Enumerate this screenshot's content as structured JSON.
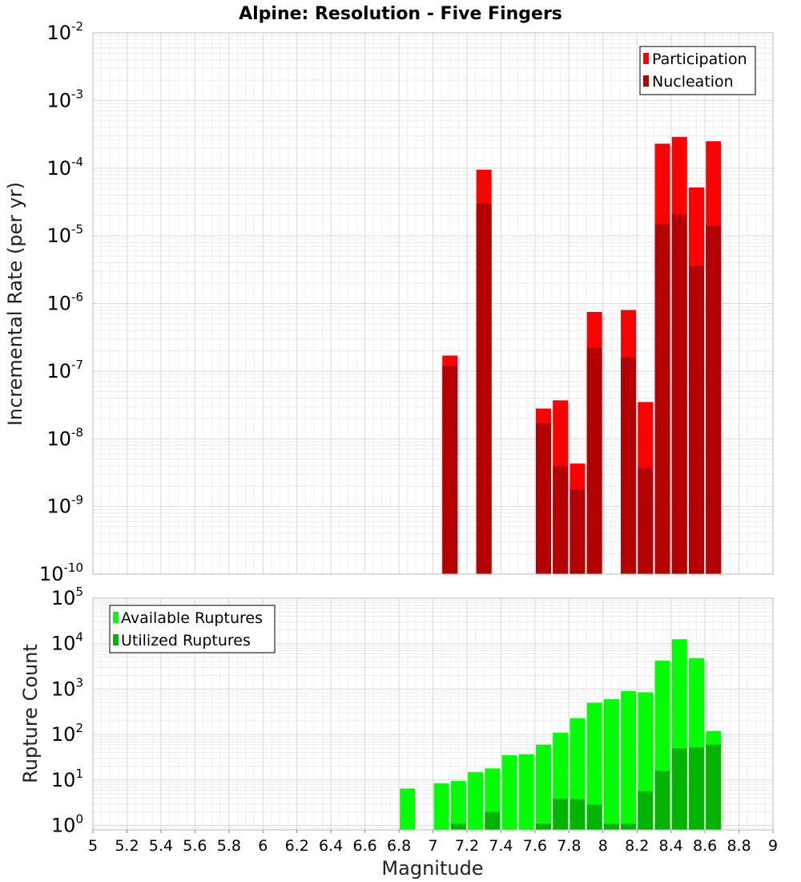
{
  "chart_data": [
    {
      "type": "bar",
      "title": "Alpine: Resolution - Five Fingers",
      "xlabel": "Magnitude",
      "ylabel": "Incremental Rate (per yr)",
      "yscale": "log",
      "ylim": [
        1e-10,
        0.01
      ],
      "xlim": [
        5,
        9
      ],
      "grid": true,
      "legend_position": "top-right",
      "series": [
        {
          "name": "Participation",
          "color": "#ff0000",
          "x": [
            7.1,
            7.3,
            7.65,
            7.75,
            7.85,
            7.95,
            8.15,
            8.25,
            8.35,
            8.45,
            8.55,
            8.65
          ],
          "values": [
            1.7e-07,
            9.5e-05,
            2.8e-08,
            3.7e-08,
            4.3e-09,
            7.5e-07,
            8e-07,
            3.5e-08,
            0.00023,
            0.00029,
            5.2e-05,
            0.00025
          ]
        },
        {
          "name": "Nucleation",
          "color": "#b40000",
          "x": [
            7.1,
            7.3,
            7.65,
            7.75,
            7.85,
            7.95,
            8.15,
            8.25,
            8.35,
            8.45,
            8.55,
            8.65
          ],
          "values": [
            1.2e-07,
            3e-05,
            1.7e-08,
            4e-09,
            1.8e-09,
            2.2e-07,
            1.6e-07,
            3.8e-09,
            1.5e-05,
            2.1e-05,
            3.6e-06,
            1.4e-05
          ]
        }
      ]
    },
    {
      "type": "bar",
      "xlabel": "Magnitude",
      "ylabel": "Rupture Count",
      "yscale": "log",
      "ylim": [
        0.8,
        100000.0
      ],
      "xlim": [
        5,
        9
      ],
      "grid": true,
      "legend_position": "top-left",
      "xticks": [
        "5",
        "5.2",
        "5.4",
        "5.6",
        "5.8",
        "6",
        "6.2",
        "6.4",
        "6.6",
        "6.8",
        "7",
        "7.2",
        "7.4",
        "7.6",
        "7.8",
        "8",
        "8.2",
        "8.4",
        "8.6",
        "8.8",
        "9"
      ],
      "series": [
        {
          "name": "Available Ruptures",
          "color": "#00ff00",
          "x": [
            6.85,
            7.05,
            7.15,
            7.25,
            7.35,
            7.45,
            7.55,
            7.65,
            7.75,
            7.85,
            7.95,
            8.05,
            8.15,
            8.25,
            8.35,
            8.45,
            8.55,
            8.65
          ],
          "values": [
            6.5,
            8.5,
            9.5,
            15,
            18,
            35,
            37,
            60,
            110,
            230,
            500,
            600,
            900,
            850,
            4200,
            12500,
            4800,
            120
          ]
        },
        {
          "name": "Utilized Ruptures",
          "color": "#00b400",
          "x": [
            7.15,
            7.35,
            7.65,
            7.75,
            7.85,
            7.95,
            8.05,
            8.15,
            8.25,
            8.35,
            8.45,
            8.55,
            8.65
          ],
          "values": [
            1.1,
            2.0,
            1.1,
            3.9,
            3.8,
            2.9,
            1.1,
            1.1,
            5.7,
            16,
            50,
            52,
            60
          ]
        }
      ]
    }
  ]
}
